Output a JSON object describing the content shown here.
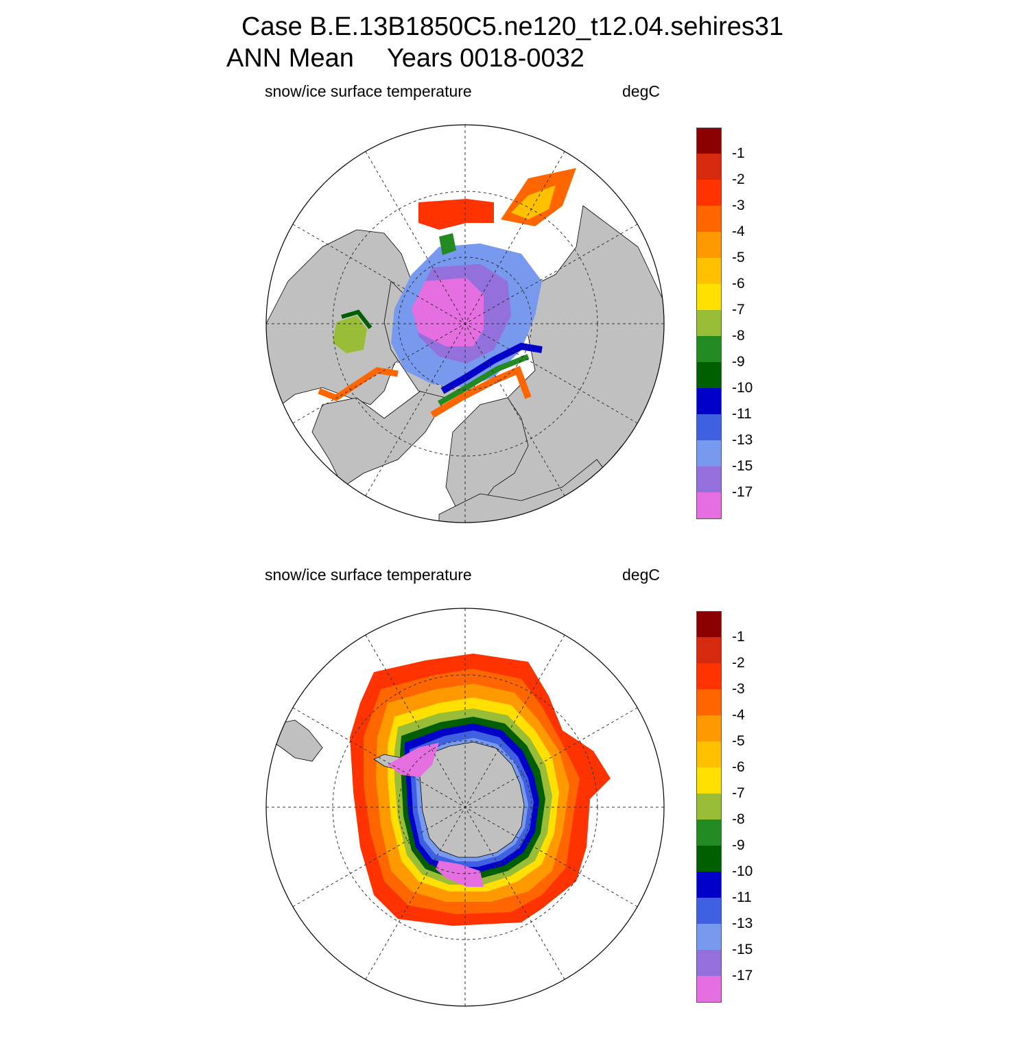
{
  "title": {
    "line1": "Case B.E.13B1850C5.ne120_t12.04.sehires31",
    "line2_left": "ANN Mean",
    "line2_right": "Years 0018-0032"
  },
  "panels": [
    {
      "id": "north",
      "hemisphere": "Northern",
      "variable": "snow/ice surface temperature",
      "units": "degC"
    },
    {
      "id": "south",
      "hemisphere": "Southern",
      "variable": "snow/ice surface temperature",
      "units": "degC"
    }
  ],
  "colorbar": {
    "colors": [
      "#8b0000",
      "#d62a10",
      "#ff3300",
      "#ff6600",
      "#ff9900",
      "#ffc000",
      "#ffe000",
      "#9abd38",
      "#218b21",
      "#005f00",
      "#0000c8",
      "#3f60e0",
      "#7799ee",
      "#9370db",
      "#e56ee0"
    ],
    "labels": [
      "-1",
      "-2",
      "-3",
      "-4",
      "-5",
      "-6",
      "-7",
      "-8",
      "-9",
      "-10",
      "-11",
      "-13",
      "-15",
      "-17"
    ]
  },
  "map_colors": {
    "land": "#c0c0c0",
    "ocean": "#ffffff",
    "grid": "#333333"
  }
}
